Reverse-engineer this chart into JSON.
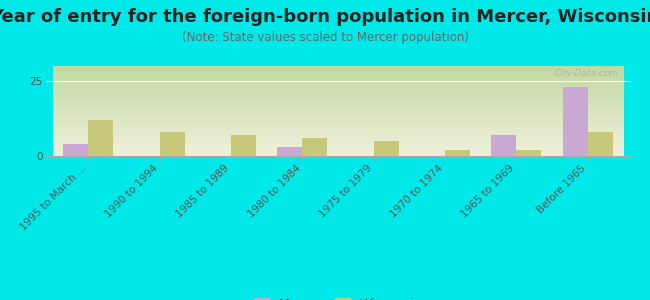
{
  "title": "Year of entry for the foreign-born population in Mercer, Wisconsin",
  "subtitle": "(Note: State values scaled to Mercer population)",
  "categories": [
    "1995 to March ...",
    "1990 to 1994",
    "1985 to 1989",
    "1980 to 1984",
    "1975 to 1979",
    "1970 to 1974",
    "1965 to 1969",
    "Before 1965"
  ],
  "mercer_values": [
    4,
    0,
    0,
    3,
    0,
    0,
    7,
    23
  ],
  "wisconsin_values": [
    12,
    8,
    7,
    6,
    5,
    2,
    2,
    8
  ],
  "mercer_color": "#c9a8d4",
  "wisconsin_color": "#c8c87a",
  "figure_bg": "#00e8e8",
  "plot_bg_top": "#c2d9a0",
  "plot_bg_bottom": "#f0f0dc",
  "watermark": "City-Data.com",
  "ylim": [
    0,
    30
  ],
  "title_fontsize": 13,
  "subtitle_fontsize": 8.5,
  "tick_fontsize": 7.5,
  "bar_width": 0.35
}
